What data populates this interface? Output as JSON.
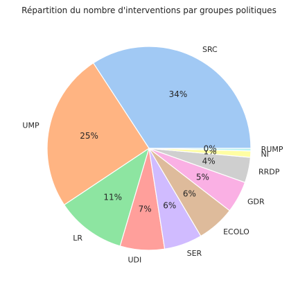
{
  "chart_data": {
    "type": "pie",
    "title": "Répartition du nombre d'interventions par groupes politiques",
    "slices": [
      {
        "label": "SRC",
        "value": 34,
        "pct_label": "34%",
        "color": "#a1c9f4"
      },
      {
        "label": "UMP",
        "value": 25,
        "pct_label": "25%",
        "color": "#ffb482"
      },
      {
        "label": "LR",
        "value": 11,
        "pct_label": "11%",
        "color": "#8de5a1"
      },
      {
        "label": "UDI",
        "value": 7,
        "pct_label": "7%",
        "color": "#ff9f9b"
      },
      {
        "label": "SER",
        "value": 6,
        "pct_label": "6%",
        "color": "#d0bbff"
      },
      {
        "label": "ECOLO",
        "value": 6,
        "pct_label": "6%",
        "color": "#debb9b"
      },
      {
        "label": "GDR",
        "value": 5,
        "pct_label": "5%",
        "color": "#fab0e4"
      },
      {
        "label": "RRDP",
        "value": 4,
        "pct_label": "4%",
        "color": "#cfcfcf"
      },
      {
        "label": "NI",
        "value": 1,
        "pct_label": "1%",
        "color": "#fffea3"
      },
      {
        "label": "RUMP",
        "value": 0.4,
        "pct_label": "0%",
        "color": "#b9f2f0"
      }
    ]
  }
}
